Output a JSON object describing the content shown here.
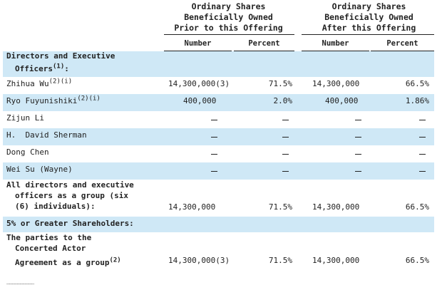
{
  "headers": {
    "group_prior": [
      "Ordinary Shares",
      "Beneficially Owned",
      "Prior to this Offering"
    ],
    "group_after": [
      "Ordinary Shares",
      "Beneficially Owned",
      "After this Offering"
    ],
    "number": "Number",
    "percent": "Percent"
  },
  "section_directors": {
    "line1": "Directors and Executive",
    "line2": "Officers",
    "sup": "(1)",
    "suffix": ":"
  },
  "rows": [
    {
      "name": "Zhihua Wu",
      "sup": "(2)(i)",
      "prior_number": "14,300,000",
      "prior_number_sup": "(3)",
      "prior_percent": "71.5%",
      "after_number": "14,300,000",
      "after_percent": "66.5%"
    },
    {
      "name": "Ryo Fuyunishiki",
      "sup": "(2)(i)",
      "prior_number": "400,000",
      "prior_percent": "2.0%",
      "after_number": "400,000",
      "after_percent": "1.86%"
    },
    {
      "name": "Zijun Li"
    },
    {
      "name": "H.  David Sherman"
    },
    {
      "name": "Dong Chen"
    },
    {
      "name": "Wei Su (Wayne)"
    }
  ],
  "group_total": {
    "lines": [
      "All directors and executive",
      "officers as a group (six",
      "(6) individuals):"
    ],
    "prior_number": "14,300,000",
    "prior_percent": "71.5%",
    "after_number": "14,300,000",
    "after_percent": "66.5%"
  },
  "section_shareholders": "5% or Greater Shareholders:",
  "concerted": {
    "lines": [
      "The parties to the",
      "Concerted Actor",
      "Agreement as a group"
    ],
    "sup": "(2)",
    "prior_number": "14,300,000",
    "prior_number_sup": "(3)",
    "prior_percent": "71.5%",
    "after_number": "14,300,000",
    "after_percent": "66.5%"
  },
  "footnote_rule": "__________"
}
